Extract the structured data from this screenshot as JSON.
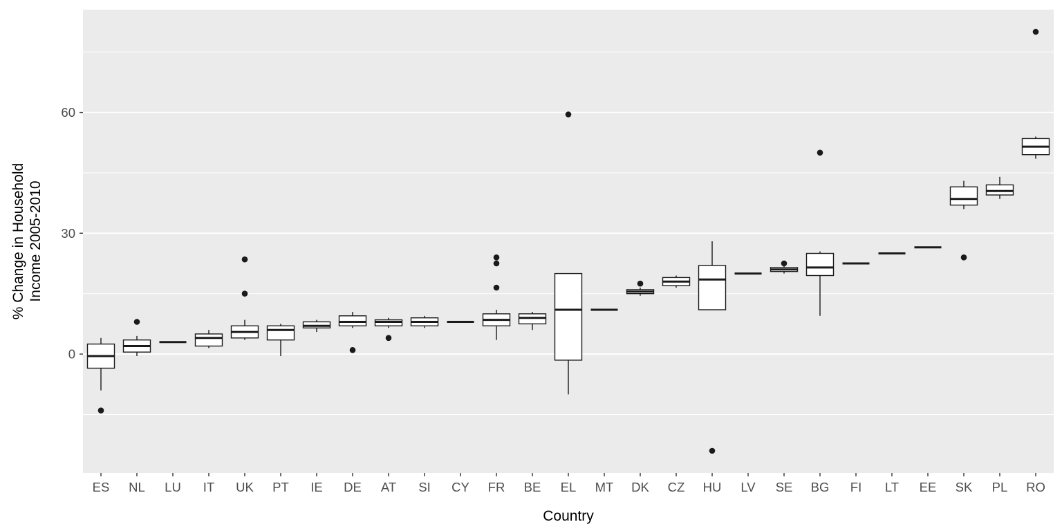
{
  "chart_data": {
    "type": "boxplot",
    "title": "",
    "xlabel": "Country",
    "ylabel": "% Change in Household Income 2005-2010",
    "ylabel_lines": [
      "% Change in Household",
      "Income 2005-2010"
    ],
    "ylim": [
      -29.5,
      85.5
    ],
    "yticks": [
      0,
      30,
      60
    ],
    "grid_minor": [
      -15,
      15,
      45,
      75
    ],
    "grid": "on",
    "legend": "none",
    "categories": [
      "ES",
      "NL",
      "LU",
      "IT",
      "UK",
      "PT",
      "IE",
      "DE",
      "AT",
      "SI",
      "CY",
      "FR",
      "BE",
      "EL",
      "MT",
      "DK",
      "CZ",
      "HU",
      "LV",
      "SE",
      "BG",
      "FI",
      "LT",
      "EE",
      "SK",
      "PL",
      "RO"
    ],
    "boxes": [
      {
        "label": "ES",
        "low": -9,
        "q1": -3.5,
        "med": -0.5,
        "q3": 2.5,
        "high": 4,
        "out": [
          -14
        ]
      },
      {
        "label": "NL",
        "low": -0.5,
        "q1": 0.5,
        "med": 2,
        "q3": 3.5,
        "high": 4.5,
        "out": [
          8
        ]
      },
      {
        "label": "LU",
        "low": 3,
        "q1": 3,
        "med": 3,
        "q3": 3,
        "high": 3,
        "out": []
      },
      {
        "label": "IT",
        "low": 1.5,
        "q1": 2,
        "med": 4,
        "q3": 5,
        "high": 6,
        "out": []
      },
      {
        "label": "UK",
        "low": 3.5,
        "q1": 4,
        "med": 5.5,
        "q3": 7,
        "high": 8.5,
        "out": [
          15,
          23.5
        ]
      },
      {
        "label": "PT",
        "low": -0.5,
        "q1": 3.5,
        "med": 6,
        "q3": 7,
        "high": 7.5,
        "out": []
      },
      {
        "label": "IE",
        "low": 5.5,
        "q1": 6.5,
        "med": 7,
        "q3": 8,
        "high": 8.5,
        "out": []
      },
      {
        "label": "DE",
        "low": 6.5,
        "q1": 7,
        "med": 8,
        "q3": 9.5,
        "high": 10.5,
        "out": [
          1
        ]
      },
      {
        "label": "AT",
        "low": 6.5,
        "q1": 7,
        "med": 8,
        "q3": 8.5,
        "high": 9,
        "out": [
          4
        ]
      },
      {
        "label": "SI",
        "low": 6.5,
        "q1": 7,
        "med": 8,
        "q3": 9,
        "high": 9.5,
        "out": []
      },
      {
        "label": "CY",
        "low": 8,
        "q1": 8,
        "med": 8,
        "q3": 8,
        "high": 8,
        "out": []
      },
      {
        "label": "FR",
        "low": 3.5,
        "q1": 7,
        "med": 8.5,
        "q3": 10,
        "high": 11,
        "out": [
          16.5,
          22.5,
          24
        ]
      },
      {
        "label": "BE",
        "low": 6,
        "q1": 7.5,
        "med": 9,
        "q3": 10,
        "high": 10.5,
        "out": []
      },
      {
        "label": "EL",
        "low": -10,
        "q1": -1.5,
        "med": 11,
        "q3": 20,
        "high": 20,
        "out": [
          59.5
        ]
      },
      {
        "label": "MT",
        "low": 11,
        "q1": 11,
        "med": 11,
        "q3": 11,
        "high": 11,
        "out": []
      },
      {
        "label": "DK",
        "low": 14.5,
        "q1": 15,
        "med": 15.5,
        "q3": 16,
        "high": 16.5,
        "out": [
          17.5
        ]
      },
      {
        "label": "CZ",
        "low": 16.5,
        "q1": 17,
        "med": 18,
        "q3": 19,
        "high": 19.5,
        "out": []
      },
      {
        "label": "HU",
        "low": 11,
        "q1": 11,
        "med": 18.5,
        "q3": 22,
        "high": 28,
        "out": [
          -24
        ]
      },
      {
        "label": "LV",
        "low": 20,
        "q1": 20,
        "med": 20,
        "q3": 20,
        "high": 20,
        "out": []
      },
      {
        "label": "SE",
        "low": 20,
        "q1": 20.5,
        "med": 21,
        "q3": 21.5,
        "high": 22,
        "out": [
          22.5
        ]
      },
      {
        "label": "BG",
        "low": 9.5,
        "q1": 19.5,
        "med": 21.5,
        "q3": 25,
        "high": 25.5,
        "out": [
          50
        ]
      },
      {
        "label": "FI",
        "low": 22.5,
        "q1": 22.5,
        "med": 22.5,
        "q3": 22.5,
        "high": 22.5,
        "out": []
      },
      {
        "label": "LT",
        "low": 25,
        "q1": 25,
        "med": 25,
        "q3": 25,
        "high": 25,
        "out": []
      },
      {
        "label": "EE",
        "low": 26.5,
        "q1": 26.5,
        "med": 26.5,
        "q3": 26.5,
        "high": 26.5,
        "out": []
      },
      {
        "label": "SK",
        "low": 36,
        "q1": 37,
        "med": 38.5,
        "q3": 41.5,
        "high": 43,
        "out": [
          24
        ]
      },
      {
        "label": "PL",
        "low": 38.5,
        "q1": 39.5,
        "med": 40.5,
        "q3": 42,
        "high": 44,
        "out": []
      },
      {
        "label": "RO",
        "low": 48.5,
        "q1": 49.5,
        "med": 51.5,
        "q3": 53.5,
        "high": 54,
        "out": [
          80
        ]
      }
    ],
    "colors": {
      "panel_bg": "#EBEBEB",
      "grid": "#FFFFFF",
      "box_fill": "#FFFFFF",
      "box_stroke": "#1A1A1A",
      "tick": "#333333",
      "text": "#4D4D4D",
      "title_text": "#000000"
    }
  }
}
